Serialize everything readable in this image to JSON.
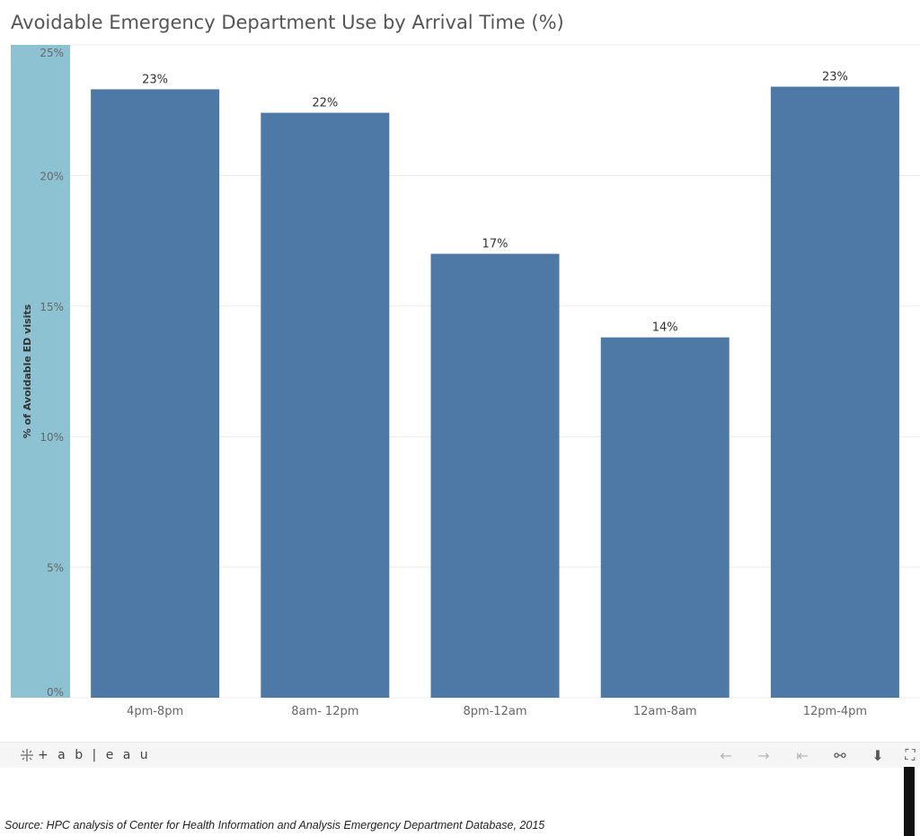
{
  "title": "Avoidable Emergency Department Use by Arrival Time (%)",
  "chart_data": {
    "type": "bar",
    "title": "Avoidable Emergency Department Use by Arrival Time (%)",
    "categories": [
      "4pm-8pm",
      "8am- 12pm",
      "8pm-12am",
      "12am-8am",
      "12pm-4pm"
    ],
    "values": [
      23.3,
      22.4,
      17.0,
      13.8,
      23.4
    ],
    "data_labels": [
      "23%",
      "22%",
      "17%",
      "14%",
      "23%"
    ],
    "xlabel": "",
    "ylabel": "% of Avoidable ED visits",
    "ylim": [
      0,
      25
    ],
    "yticks": [
      0,
      5,
      10,
      15,
      20,
      25
    ],
    "ytick_labels": [
      "0%",
      "5%",
      "10%",
      "15%",
      "20%",
      "25%"
    ],
    "grid": true,
    "legend": "none",
    "bar_color": "#4e79a7",
    "axis_band_color": "#8dc2d3"
  },
  "toolbar": {
    "logo_text": "+ a b | e a u",
    "buttons": [
      {
        "name": "undo-icon",
        "glyph": "←"
      },
      {
        "name": "redo-icon",
        "glyph": "→"
      },
      {
        "name": "revert-icon",
        "glyph": "⇤"
      },
      {
        "name": "share-icon",
        "glyph": "⚯"
      },
      {
        "name": "download-icon",
        "glyph": "⬇"
      },
      {
        "name": "fullscreen-icon",
        "glyph": "⛶"
      }
    ]
  },
  "source": "Source: HPC analysis of Center for Health Information and Analysis Emergency Department Database, 2015"
}
